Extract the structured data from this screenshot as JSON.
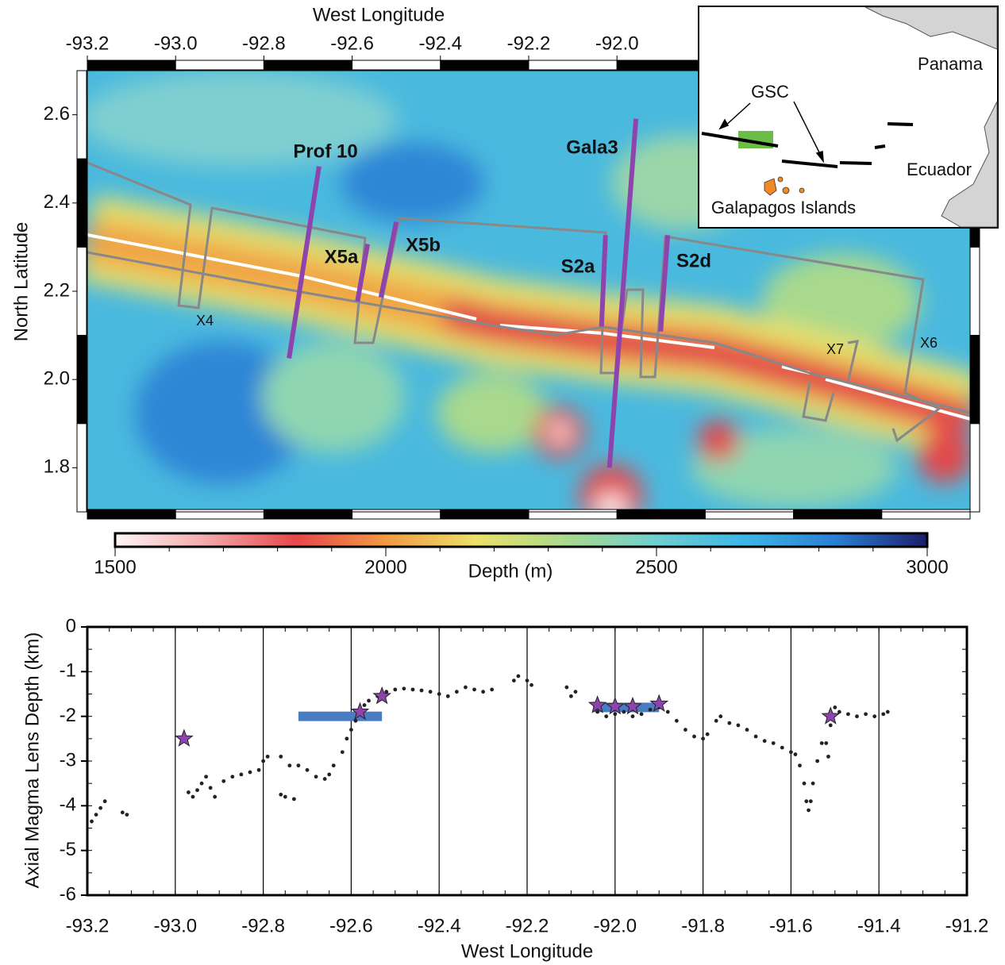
{
  "chart_data": [
    {
      "type": "map",
      "x_label": "West Longitude",
      "y_label": "North Latitude",
      "xlim": [
        -93.2,
        -91.2
      ],
      "ylim": [
        1.7,
        2.7
      ],
      "xticks": [
        -93.2,
        {
          "value": -93,
          "label": "-93.0"
        },
        -92.8,
        -92.6,
        -92.4,
        -92.2,
        {
          "value": -92,
          "label": "-92.0"
        }
      ],
      "yticks": [
        1.8,
        {
          "value": 2,
          "label": "2.0"
        },
        2.2,
        2.4,
        2.6
      ],
      "profile_color": "#8e44ad",
      "profiles": [
        {
          "name": "Prof 10",
          "x": [
            -92.675,
            -92.743
          ],
          "y": [
            2.483,
            2.048
          ]
        },
        {
          "name": "X5a",
          "x": [
            -92.565,
            -92.588
          ],
          "y": [
            2.307,
            2.177
          ]
        },
        {
          "name": "X5b",
          "x": [
            -92.5,
            -92.535
          ],
          "y": [
            2.357,
            2.186
          ]
        },
        {
          "name": "S2a",
          "x": [
            -92.026,
            -92.035
          ],
          "y": [
            2.327,
            2.12
          ]
        },
        {
          "name": "Gala3",
          "x": [
            -91.957,
            -92.017
          ],
          "y": [
            2.591,
            1.8
          ]
        },
        {
          "name": "S2d",
          "x": [
            -91.885,
            -91.901
          ],
          "y": [
            2.327,
            2.109
          ]
        }
      ],
      "track_labels": [
        "X4",
        "X7",
        "X6"
      ],
      "inset": {
        "labels": [
          "Panama",
          "GSC",
          "Ecuador",
          "Galapagos Islands"
        ]
      }
    },
    {
      "type": "colorbar",
      "x_label": "Depth (m)",
      "xlim": [
        1500,
        3000
      ],
      "xticks": [
        1500,
        2000,
        2500,
        3000
      ],
      "colormap": [
        "#fff6f6",
        "#f3a9ab",
        "#e6474b",
        "#f19a45",
        "#ebe06a",
        "#a9d98d",
        "#6fcfd0",
        "#3cb5e5",
        "#2b7dd2",
        "#1b1e6a"
      ]
    },
    {
      "type": "scatter",
      "x_label": "West Longitude",
      "y_label": "Axial Magma Lens Depth (km)",
      "xlim": [
        -93.2,
        -91.2
      ],
      "ylim": [
        -6,
        0
      ],
      "xticks": [
        -93.2,
        {
          "value": -93,
          "label": "-93.0"
        },
        -92.8,
        -92.6,
        -92.4,
        -92.2,
        {
          "value": -92,
          "label": "-92.0"
        },
        -91.8,
        -91.6,
        -91.4,
        -91.2
      ],
      "yticks": [
        0,
        -1,
        -2,
        -3,
        -4,
        -5,
        -6
      ],
      "grid": true,
      "series": [
        {
          "marker": "dot",
          "color": "#222222",
          "x": [
            -93.19,
            -93.18,
            -93.17,
            -93.16,
            -93.12,
            -93.11,
            -92.97,
            -92.96,
            -92.95,
            -92.94,
            -92.93,
            -92.92,
            -92.91,
            -92.89,
            -92.87,
            -92.85,
            -92.83,
            -92.81,
            -92.8,
            -92.79,
            -92.76,
            -92.75,
            -92.73,
            -92.76,
            -92.74,
            -92.72,
            -92.7,
            -92.68,
            -92.66,
            -92.65,
            -92.64,
            -92.62,
            -92.61,
            -92.6,
            -92.59,
            -92.58,
            -92.57,
            -92.56,
            -92.54,
            -92.52,
            -92.5,
            -92.48,
            -92.46,
            -92.44,
            -92.42,
            -92.4,
            -92.38,
            -92.36,
            -92.34,
            -92.32,
            -92.3,
            -92.28,
            -92.23,
            -92.22,
            -92.2,
            -92.19,
            -92.11,
            -92.1,
            -92.09,
            -92.04,
            -92.02,
            -92.0,
            -91.98,
            -91.96,
            -91.94,
            -91.92,
            -91.9,
            -91.88,
            -91.86,
            -91.84,
            -91.82,
            -91.8,
            -91.79,
            -91.77,
            -91.76,
            -91.74,
            -91.72,
            -91.7,
            -91.68,
            -91.66,
            -91.64,
            -91.62,
            -91.6,
            -91.59,
            -91.58,
            -91.57,
            -91.565,
            -91.56,
            -91.555,
            -91.55,
            -91.54,
            -91.53,
            -91.52,
            -91.515,
            -91.51,
            -91.5,
            -91.49,
            -91.47,
            -91.45,
            -91.43,
            -91.41,
            -91.39,
            -91.38
          ],
          "values": [
            -4.35,
            -4.2,
            -4.05,
            -3.9,
            -4.15,
            -4.2,
            -3.7,
            -3.8,
            -3.65,
            -3.5,
            -3.35,
            -3.6,
            -3.8,
            -3.45,
            -3.35,
            -3.3,
            -3.25,
            -3.2,
            -3.0,
            -2.9,
            -3.75,
            -3.8,
            -3.85,
            -2.9,
            -3.1,
            -3.1,
            -3.2,
            -3.35,
            -3.4,
            -3.3,
            -3.1,
            -2.8,
            -2.5,
            -2.3,
            -2.1,
            -1.9,
            -1.75,
            -1.65,
            -1.55,
            -1.45,
            -1.4,
            -1.38,
            -1.4,
            -1.42,
            -1.45,
            -1.5,
            -1.55,
            -1.45,
            -1.35,
            -1.4,
            -1.45,
            -1.4,
            -1.2,
            -1.1,
            -1.2,
            -1.3,
            -1.35,
            -1.55,
            -1.45,
            -1.9,
            -2.0,
            -1.95,
            -1.9,
            -2.0,
            -1.95,
            -1.85,
            -1.8,
            -1.9,
            -2.1,
            -2.3,
            -2.45,
            -2.5,
            -2.4,
            -2.1,
            -2.0,
            -2.15,
            -2.2,
            -2.3,
            -2.45,
            -2.55,
            -2.6,
            -2.7,
            -2.8,
            -2.85,
            -3.1,
            -3.5,
            -3.9,
            -4.1,
            -3.9,
            -3.5,
            -3.0,
            -2.6,
            -2.6,
            -2.9,
            -2.2,
            -1.8,
            -1.9,
            -1.95,
            -2.0,
            -1.95,
            -2.0,
            -1.95,
            -1.9
          ]
        },
        {
          "marker": "star",
          "color": "#8e44ad",
          "x": [
            -92.98,
            -92.58,
            -92.53,
            -92.04,
            -92.0,
            -91.96,
            -91.9,
            -91.51
          ],
          "values": [
            -2.5,
            -1.9,
            -1.55,
            -1.75,
            -1.78,
            -1.78,
            -1.72,
            -2.0
          ]
        }
      ],
      "range_color": "#4a7cc4",
      "ranges": [
        {
          "x": [
            -92.72,
            -92.53
          ],
          "y": -2.0
        },
        {
          "x": [
            -92.05,
            -91.9
          ],
          "y": -1.8
        }
      ]
    }
  ]
}
